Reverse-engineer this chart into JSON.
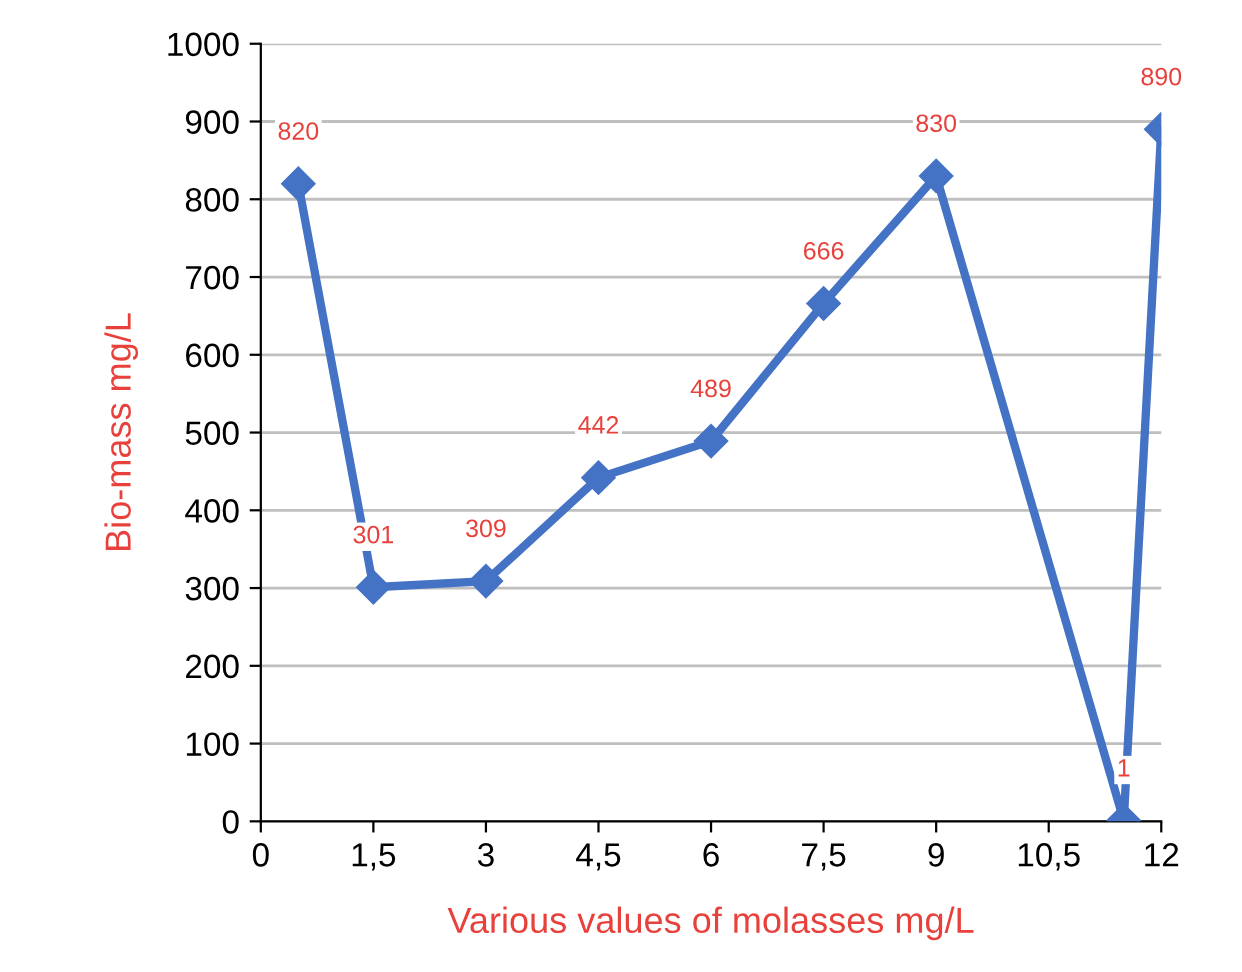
{
  "chart_data": {
    "type": "line",
    "xlabel": "Various values of molasses mg/L",
    "ylabel": "Bio-mass mg/L",
    "x": [
      0.5,
      1.5,
      3,
      4.5,
      6,
      7.5,
      9,
      11.5,
      12
    ],
    "series": [
      {
        "color": "#4472c4",
        "values": [
          820,
          301,
          309,
          442,
          489,
          666,
          830,
          1,
          890
        ]
      }
    ],
    "xlim": [
      0,
      12
    ],
    "xticks": [
      0,
      {
        "value": 1.5,
        "label": "1,5"
      },
      3,
      {
        "value": 4.5,
        "label": "4,5"
      },
      6,
      {
        "value": 7.5,
        "label": "7,5"
      },
      9,
      {
        "value": 10.5,
        "label": "10,5"
      },
      12
    ],
    "ylim": [
      0,
      1000
    ],
    "yticks": [
      0,
      100,
      200,
      300,
      400,
      500,
      600,
      700,
      800,
      900,
      1000
    ],
    "grid": "y",
    "marker": "diamond",
    "line_style": "solid",
    "data_labels": true
  }
}
